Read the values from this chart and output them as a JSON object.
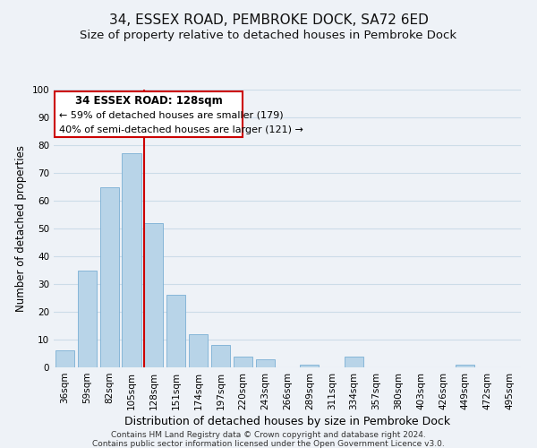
{
  "title": "34, ESSEX ROAD, PEMBROKE DOCK, SA72 6ED",
  "subtitle": "Size of property relative to detached houses in Pembroke Dock",
  "xlabel": "Distribution of detached houses by size in Pembroke Dock",
  "ylabel": "Number of detached properties",
  "bar_labels": [
    "36sqm",
    "59sqm",
    "82sqm",
    "105sqm",
    "128sqm",
    "151sqm",
    "174sqm",
    "197sqm",
    "220sqm",
    "243sqm",
    "266sqm",
    "289sqm",
    "311sqm",
    "334sqm",
    "357sqm",
    "380sqm",
    "403sqm",
    "426sqm",
    "449sqm",
    "472sqm",
    "495sqm"
  ],
  "bar_values": [
    6,
    35,
    65,
    77,
    52,
    26,
    12,
    8,
    4,
    3,
    0,
    1,
    0,
    4,
    0,
    0,
    0,
    0,
    1,
    0,
    0
  ],
  "bar_color": "#b8d4e8",
  "bar_edge_color": "#7aafd4",
  "vline_color": "#cc0000",
  "annotation_title": "34 ESSEX ROAD: 128sqm",
  "annotation_line1": "← 59% of detached houses are smaller (179)",
  "annotation_line2": "40% of semi-detached houses are larger (121) →",
  "annotation_box_color": "#ffffff",
  "annotation_box_edge": "#cc0000",
  "ylim": [
    0,
    100
  ],
  "footer1": "Contains HM Land Registry data © Crown copyright and database right 2024.",
  "footer2": "Contains public sector information licensed under the Open Government Licence v3.0.",
  "title_fontsize": 11,
  "subtitle_fontsize": 9.5,
  "xlabel_fontsize": 9,
  "ylabel_fontsize": 8.5,
  "tick_fontsize": 7.5,
  "annotation_title_fontsize": 8.5,
  "annotation_text_fontsize": 8,
  "footer_fontsize": 6.5,
  "grid_color": "#ccdce8",
  "background_color": "#eef2f7"
}
